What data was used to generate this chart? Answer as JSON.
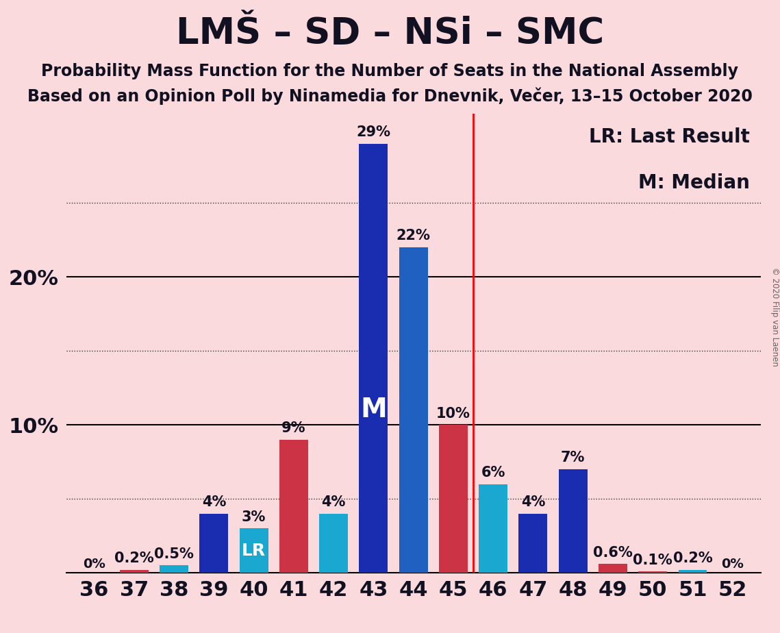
{
  "title": "LMŠ – SD – NSi – SMC",
  "subtitle1": "Probability Mass Function for the Number of Seats in the National Assembly",
  "subtitle2": "Based on an Opinion Poll by Ninamedia for Dnevnik, Večer, 13–15 October 2020",
  "copyright": "© 2020 Filip van Laenen",
  "legend_lr": "LR: Last Result",
  "legend_m": "M: Median",
  "background_color": "#fadadd",
  "seats": [
    36,
    37,
    38,
    39,
    40,
    41,
    42,
    43,
    44,
    45,
    46,
    47,
    48,
    49,
    50,
    51,
    52
  ],
  "values": [
    0.0,
    0.2,
    0.5,
    4.0,
    3.0,
    9.0,
    4.0,
    29.0,
    22.0,
    10.0,
    6.0,
    4.0,
    7.0,
    0.6,
    0.1,
    0.2,
    0.0
  ],
  "bar_colors": [
    "#cc3344",
    "#cc3344",
    "#1aa8d0",
    "#1a2db0",
    "#1aa8d0",
    "#cc3344",
    "#1aa8d0",
    "#1a2db0",
    "#2060c0",
    "#cc3344",
    "#1aa8d0",
    "#1a2db0",
    "#1a2db0",
    "#cc3344",
    "#cc3344",
    "#1aa8d0",
    "#1a2db0"
  ],
  "labels": [
    "0%",
    "0.2%",
    "0.5%",
    "4%",
    "3%",
    "9%",
    "4%",
    "29%",
    "22%",
    "10%",
    "6%",
    "4%",
    "7%",
    "0.6%",
    "0.1%",
    "0.2%",
    "0%"
  ],
  "median_seat": 43,
  "lr_seat": 40,
  "vline_x": 45.5,
  "ylim": [
    0,
    31
  ],
  "dotted_lines": [
    5,
    15,
    25
  ],
  "solid_lines": [
    10,
    20
  ],
  "title_fontsize": 38,
  "subtitle_fontsize": 17,
  "axis_label_fontsize": 22,
  "bar_label_fontsize": 15,
  "legend_fontsize": 20,
  "median_label_fontsize": 28,
  "lr_label_fontsize": 18,
  "bar_width": 0.72
}
